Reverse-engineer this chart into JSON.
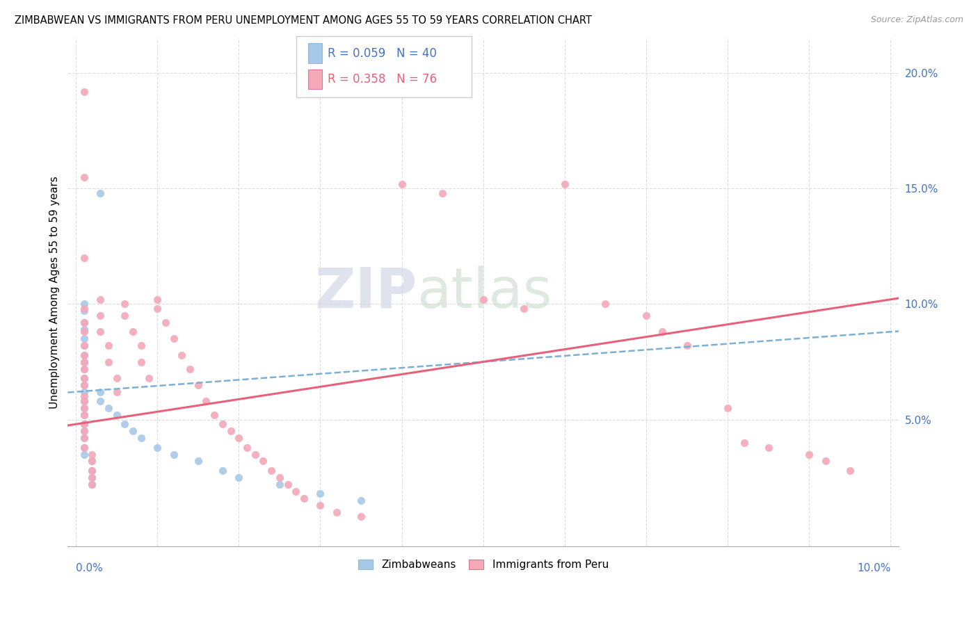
{
  "title": "ZIMBABWEAN VS IMMIGRANTS FROM PERU UNEMPLOYMENT AMONG AGES 55 TO 59 YEARS CORRELATION CHART",
  "source": "Source: ZipAtlas.com",
  "ylabel": "Unemployment Among Ages 55 to 59 years",
  "legend_label_zim": "Zimbabweans",
  "legend_label_peru": "Immigrants from Peru",
  "zim_color": "#a8c8e8",
  "peru_color": "#f4a8b8",
  "zim_line_color": "#7ab0d8",
  "peru_line_color": "#e8607a",
  "watermark": "ZIPatlas",
  "xmin": 0.0,
  "xmax": 0.1,
  "ymin": 0.0,
  "ymax": 0.21,
  "zim_trend_x0": 0.0,
  "zim_trend_y0": 0.062,
  "zim_trend_x1": 0.1,
  "zim_trend_y1": 0.088,
  "peru_trend_x0": 0.0,
  "peru_trend_y0": 0.048,
  "peru_trend_x1": 0.1,
  "peru_trend_y1": 0.102,
  "zim_points": [
    [
      0.001,
      0.1
    ],
    [
      0.001,
      0.097
    ],
    [
      0.001,
      0.092
    ],
    [
      0.001,
      0.089
    ],
    [
      0.001,
      0.085
    ],
    [
      0.001,
      0.082
    ],
    [
      0.001,
      0.078
    ],
    [
      0.001,
      0.075
    ],
    [
      0.001,
      0.072
    ],
    [
      0.001,
      0.068
    ],
    [
      0.001,
      0.065
    ],
    [
      0.001,
      0.062
    ],
    [
      0.001,
      0.058
    ],
    [
      0.001,
      0.055
    ],
    [
      0.001,
      0.052
    ],
    [
      0.001,
      0.048
    ],
    [
      0.001,
      0.045
    ],
    [
      0.001,
      0.042
    ],
    [
      0.001,
      0.038
    ],
    [
      0.001,
      0.035
    ],
    [
      0.002,
      0.032
    ],
    [
      0.002,
      0.028
    ],
    [
      0.002,
      0.025
    ],
    [
      0.002,
      0.022
    ],
    [
      0.003,
      0.148
    ],
    [
      0.003,
      0.062
    ],
    [
      0.003,
      0.058
    ],
    [
      0.004,
      0.055
    ],
    [
      0.005,
      0.052
    ],
    [
      0.006,
      0.048
    ],
    [
      0.007,
      0.045
    ],
    [
      0.008,
      0.042
    ],
    [
      0.01,
      0.038
    ],
    [
      0.012,
      0.035
    ],
    [
      0.015,
      0.032
    ],
    [
      0.018,
      0.028
    ],
    [
      0.02,
      0.025
    ],
    [
      0.025,
      0.022
    ],
    [
      0.03,
      0.018
    ],
    [
      0.035,
      0.015
    ]
  ],
  "peru_points": [
    [
      0.001,
      0.192
    ],
    [
      0.001,
      0.155
    ],
    [
      0.001,
      0.12
    ],
    [
      0.001,
      0.098
    ],
    [
      0.001,
      0.092
    ],
    [
      0.001,
      0.088
    ],
    [
      0.001,
      0.082
    ],
    [
      0.001,
      0.078
    ],
    [
      0.001,
      0.075
    ],
    [
      0.001,
      0.072
    ],
    [
      0.001,
      0.068
    ],
    [
      0.001,
      0.065
    ],
    [
      0.001,
      0.06
    ],
    [
      0.001,
      0.058
    ],
    [
      0.001,
      0.055
    ],
    [
      0.001,
      0.052
    ],
    [
      0.001,
      0.048
    ],
    [
      0.001,
      0.045
    ],
    [
      0.001,
      0.042
    ],
    [
      0.001,
      0.038
    ],
    [
      0.002,
      0.035
    ],
    [
      0.002,
      0.032
    ],
    [
      0.002,
      0.028
    ],
    [
      0.002,
      0.025
    ],
    [
      0.002,
      0.022
    ],
    [
      0.003,
      0.102
    ],
    [
      0.003,
      0.095
    ],
    [
      0.003,
      0.088
    ],
    [
      0.004,
      0.082
    ],
    [
      0.004,
      0.075
    ],
    [
      0.005,
      0.068
    ],
    [
      0.005,
      0.062
    ],
    [
      0.006,
      0.1
    ],
    [
      0.006,
      0.095
    ],
    [
      0.007,
      0.088
    ],
    [
      0.008,
      0.082
    ],
    [
      0.008,
      0.075
    ],
    [
      0.009,
      0.068
    ],
    [
      0.01,
      0.102
    ],
    [
      0.01,
      0.098
    ],
    [
      0.011,
      0.092
    ],
    [
      0.012,
      0.085
    ],
    [
      0.013,
      0.078
    ],
    [
      0.014,
      0.072
    ],
    [
      0.015,
      0.065
    ],
    [
      0.016,
      0.058
    ],
    [
      0.017,
      0.052
    ],
    [
      0.018,
      0.048
    ],
    [
      0.019,
      0.045
    ],
    [
      0.02,
      0.042
    ],
    [
      0.021,
      0.038
    ],
    [
      0.022,
      0.035
    ],
    [
      0.023,
      0.032
    ],
    [
      0.024,
      0.028
    ],
    [
      0.025,
      0.025
    ],
    [
      0.026,
      0.022
    ],
    [
      0.027,
      0.019
    ],
    [
      0.028,
      0.016
    ],
    [
      0.03,
      0.013
    ],
    [
      0.032,
      0.01
    ],
    [
      0.035,
      0.008
    ],
    [
      0.04,
      0.152
    ],
    [
      0.045,
      0.148
    ],
    [
      0.05,
      0.102
    ],
    [
      0.055,
      0.098
    ],
    [
      0.06,
      0.152
    ],
    [
      0.065,
      0.1
    ],
    [
      0.07,
      0.095
    ],
    [
      0.072,
      0.088
    ],
    [
      0.075,
      0.082
    ],
    [
      0.08,
      0.055
    ],
    [
      0.082,
      0.04
    ],
    [
      0.085,
      0.038
    ],
    [
      0.09,
      0.035
    ],
    [
      0.092,
      0.032
    ],
    [
      0.095,
      0.028
    ]
  ]
}
